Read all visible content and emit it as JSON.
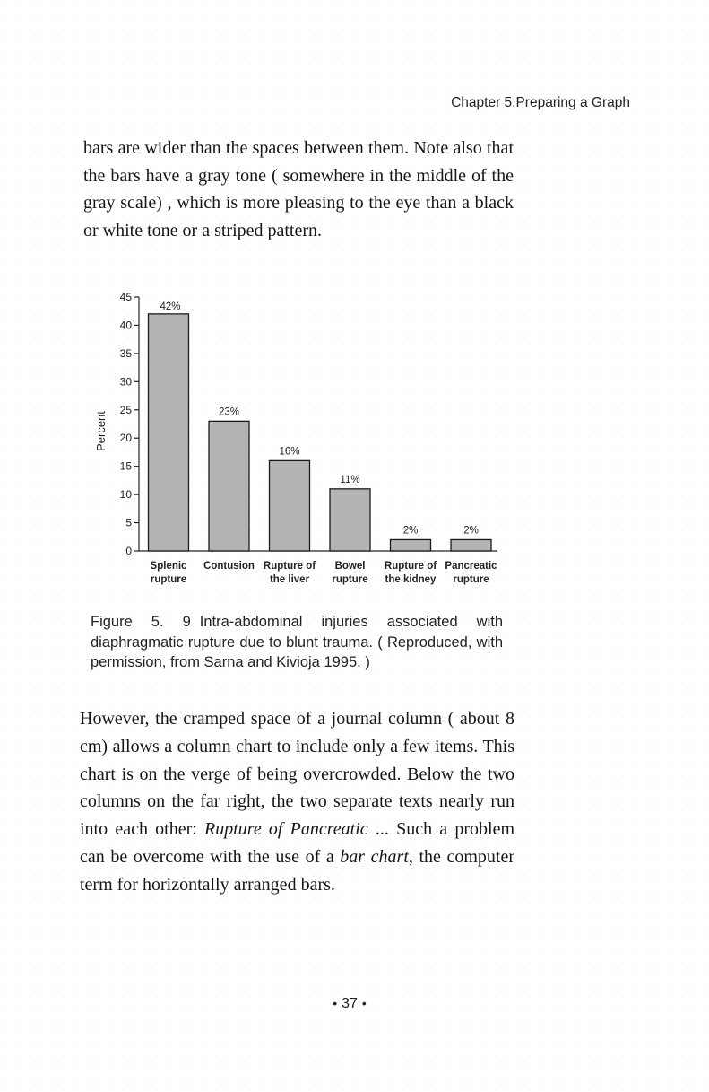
{
  "header": {
    "running_head": "Chapter 5:Preparing a Graph"
  },
  "paragraph_1": "bars are wider than the spaces between them. Note also that the bars have a gray tone ( somewhere in the middle of the gray scale) , which is more pleasing to the eye than a black or white tone or a striped pattern.",
  "figure": {
    "label": "Figure 5. 9",
    "caption": "Intra-abdominal injuries associated with diaphragmatic rupture due to blunt trauma. ( Reproduced, with permission, from Sarna and Kivioja 1995. )"
  },
  "chart_data": {
    "type": "bar",
    "categories": [
      [
        "Splenic",
        "rupture"
      ],
      [
        "Contusion"
      ],
      [
        "Rupture of",
        "the liver"
      ],
      [
        "Bowel",
        "rupture"
      ],
      [
        "Rupture of",
        "the kidney"
      ],
      [
        "Pancreatic",
        "rupture"
      ]
    ],
    "values": [
      42,
      23,
      16,
      11,
      2,
      2
    ],
    "data_labels": [
      "42%",
      "23%",
      "16%",
      "11%",
      "2%",
      "2%"
    ],
    "ylabel": "Percent",
    "ylim": [
      0,
      45
    ],
    "yticks": [
      0,
      5,
      10,
      15,
      20,
      25,
      30,
      35,
      40,
      45
    ],
    "bar_color": "#b3b3b3",
    "grid": false
  },
  "paragraph_2_parts": {
    "main": "However, the cramped space of a journal column ( about 8 cm) allows a column chart to include only a few items. This chart is on the verge of being overcrowded. Below the two columns on the far right, the two separate texts nearly run into each other:",
    "italic_1": "Rupture of Pancreatic",
    "ellipsis": "...",
    "middle": "Such a problem can be overcome with the use of a",
    "italic_2": "bar chart",
    "end": ", the computer term for horizontally arranged bars."
  },
  "footer": {
    "page_number": "37",
    "dot": "•"
  }
}
